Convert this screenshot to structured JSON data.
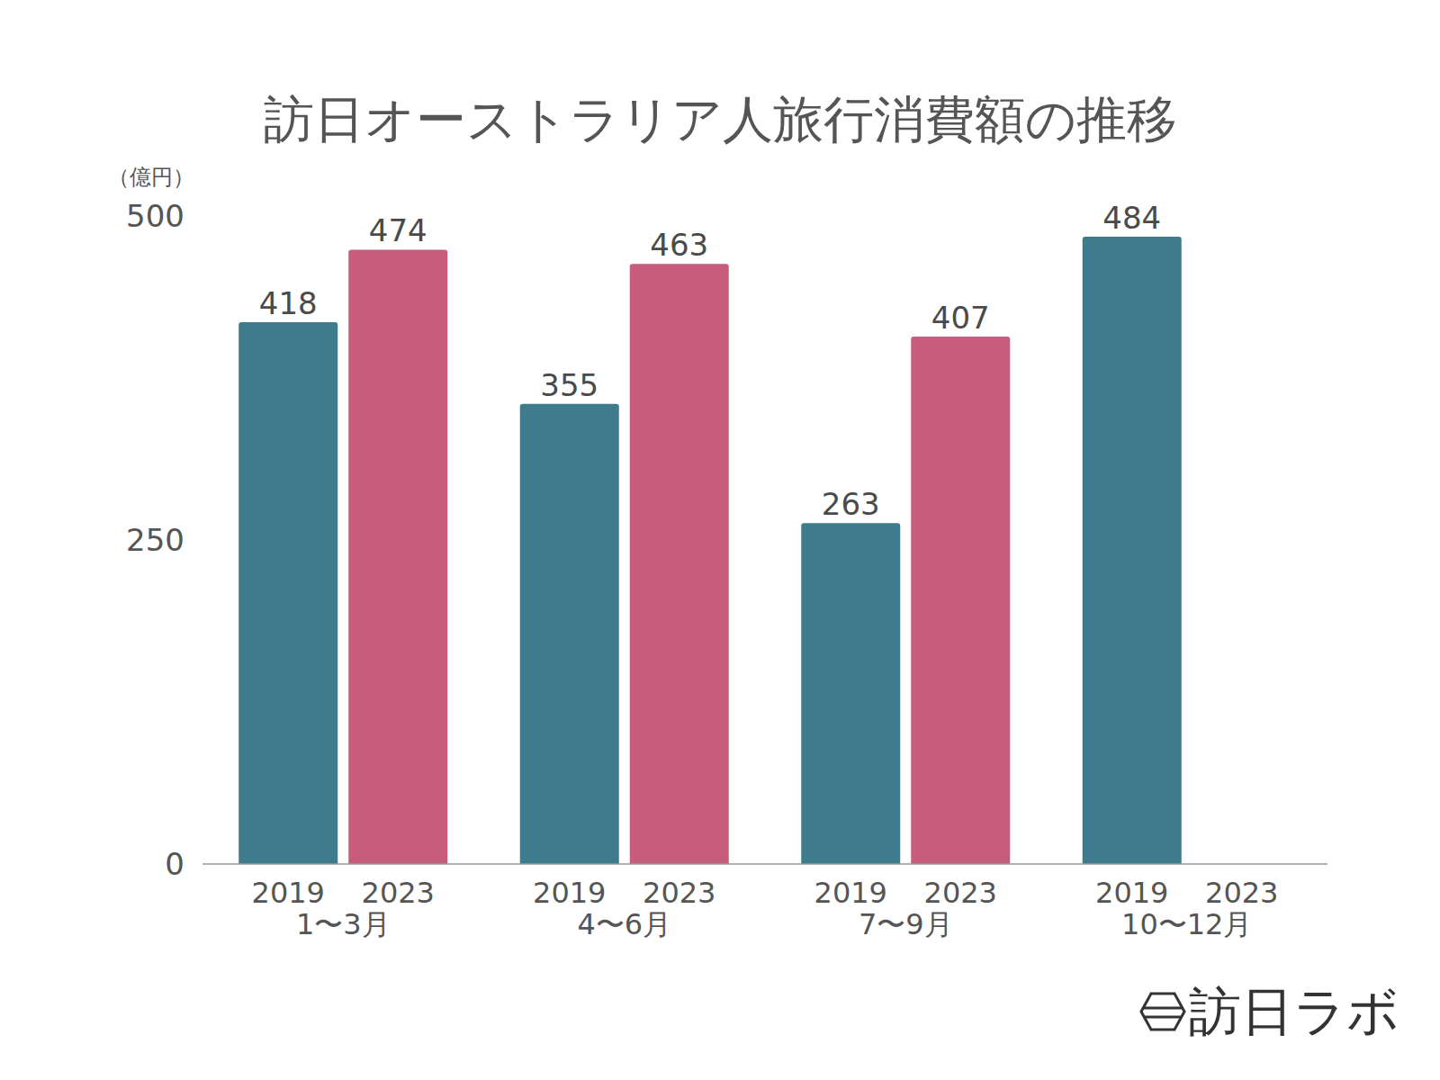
{
  "chart_data": {
    "type": "bar",
    "title": "訪日オーストラリア人旅行消費額の推移",
    "y_label": "（億円）",
    "categories": [
      "1〜3月",
      "4〜6月",
      "7〜9月",
      "10〜12月"
    ],
    "series": [
      {
        "name": "2019",
        "color": "#3e7b8c",
        "values": [
          418,
          355,
          263,
          484
        ]
      },
      {
        "name": "2023",
        "color": "#c75c7c",
        "values": [
          474,
          463,
          407,
          null
        ]
      }
    ],
    "ylim": [
      0,
      500
    ],
    "yticks": [
      0,
      250,
      500
    ],
    "grid": false,
    "data_labels": true,
    "annotations": [
      "訪日ラボ"
    ]
  }
}
